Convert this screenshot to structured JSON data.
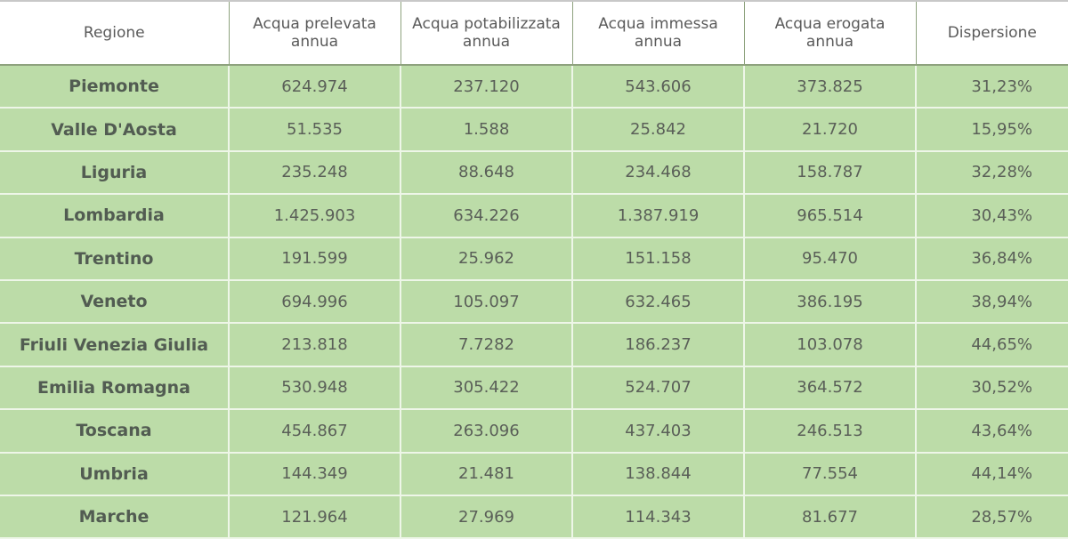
{
  "table": {
    "headers": [
      "Regione",
      "Acqua prelevata annua",
      "Acqua potabilizzata annua",
      "Acqua immessa annua",
      "Acqua erogata annua",
      "Dispersione"
    ],
    "rows": [
      [
        "Piemonte",
        "624.974",
        "237.120",
        "543.606",
        "373.825",
        "31,23%"
      ],
      [
        "Valle D'Aosta",
        "51.535",
        "1.588",
        "25.842",
        "21.720",
        "15,95%"
      ],
      [
        "Liguria",
        "235.248",
        "88.648",
        "234.468",
        "158.787",
        "32,28%"
      ],
      [
        "Lombardia",
        "1.425.903",
        "634.226",
        "1.387.919",
        "965.514",
        "30,43%"
      ],
      [
        "Trentino",
        "191.599",
        "25.962",
        "151.158",
        "95.470",
        "36,84%"
      ],
      [
        "Veneto",
        "694.996",
        "105.097",
        "632.465",
        "386.195",
        "38,94%"
      ],
      [
        "Friuli Venezia Giulia",
        "213.818",
        "7.7282",
        "186.237",
        "103.078",
        "44,65%"
      ],
      [
        "Emilia Romagna",
        "530.948",
        "305.422",
        "524.707",
        "364.572",
        "30,52%"
      ],
      [
        "Toscana",
        "454.867",
        "263.096",
        "437.403",
        "246.513",
        "43,64%"
      ],
      [
        "Umbria",
        "144.349",
        "21.481",
        "138.844",
        "77.554",
        "44,14%"
      ],
      [
        "Marche",
        "121.964",
        "27.969",
        "114.343",
        "81.677",
        "28,57%"
      ]
    ]
  },
  "colors": {
    "row_bg": "#bcdca8",
    "header_bg": "#ffffff",
    "text": "#5a5f58"
  }
}
